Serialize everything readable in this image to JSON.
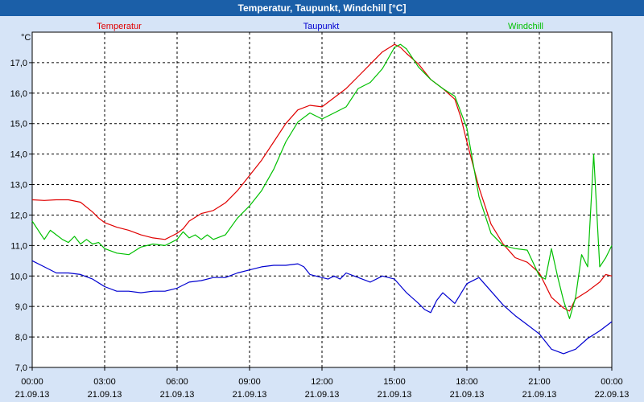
{
  "window": {
    "title": "Temperatur, Taupunkt, Windchill [°C]"
  },
  "colors": {
    "background": "#d6e4f7",
    "plot_background": "#ffffff",
    "title_bar": "#1b5fa8",
    "grid": "#000000"
  },
  "chart_data": {
    "type": "line",
    "title": "Temperatur, Taupunkt, Windchill [°C]",
    "ylabel": "°C",
    "xlabel": "",
    "xlim": [
      0,
      24
    ],
    "ylim": [
      7,
      18
    ],
    "grid": true,
    "yticks": [
      {
        "value": 7,
        "label": "7,0"
      },
      {
        "value": 8,
        "label": "8,0"
      },
      {
        "value": 9,
        "label": "9,0"
      },
      {
        "value": 10,
        "label": "10,0"
      },
      {
        "value": 11,
        "label": "11,0"
      },
      {
        "value": 12,
        "label": "12,0"
      },
      {
        "value": 13,
        "label": "13,0"
      },
      {
        "value": 14,
        "label": "14,0"
      },
      {
        "value": 15,
        "label": "15,0"
      },
      {
        "value": 16,
        "label": "16,0"
      },
      {
        "value": 17,
        "label": "17,0"
      }
    ],
    "xticks": [
      {
        "value": 0,
        "time": "00:00",
        "date": "21.09.13"
      },
      {
        "value": 3,
        "time": "03:00",
        "date": "21.09.13"
      },
      {
        "value": 6,
        "time": "06:00",
        "date": "21.09.13"
      },
      {
        "value": 9,
        "time": "09:00",
        "date": "21.09.13"
      },
      {
        "value": 12,
        "time": "12:00",
        "date": "21.09.13"
      },
      {
        "value": 15,
        "time": "15:00",
        "date": "21.09.13"
      },
      {
        "value": 18,
        "time": "18:00",
        "date": "21.09.13"
      },
      {
        "value": 21,
        "time": "21:00",
        "date": "21.09.13"
      },
      {
        "value": 24,
        "time": "00:00",
        "date": "22.09.13"
      }
    ],
    "series": [
      {
        "name": "Temperatur",
        "color": "#e00000",
        "x": [
          0,
          0.5,
          1,
          1.5,
          2,
          2.5,
          2.75,
          3,
          3.5,
          4,
          4.5,
          5,
          5.5,
          5.75,
          6,
          6.25,
          6.5,
          7,
          7.5,
          8,
          8.5,
          9,
          9.5,
          10,
          10.5,
          11,
          11.5,
          12,
          12.5,
          13,
          13.5,
          14,
          14.5,
          15,
          15.25,
          15.5,
          16,
          16.5,
          17,
          17.5,
          17.75,
          18,
          18.5,
          19,
          19.5,
          20,
          20.5,
          21,
          21.5,
          22,
          22.25,
          22.5,
          23,
          23.5,
          23.75,
          24
        ],
        "values": [
          12.5,
          12.48,
          12.5,
          12.5,
          12.42,
          12.1,
          11.9,
          11.75,
          11.6,
          11.5,
          11.35,
          11.25,
          11.2,
          11.3,
          11.4,
          11.55,
          11.8,
          12.05,
          12.15,
          12.4,
          12.8,
          13.3,
          13.8,
          14.4,
          15.0,
          15.45,
          15.6,
          15.55,
          15.85,
          16.15,
          16.55,
          16.95,
          17.35,
          17.6,
          17.5,
          17.3,
          16.95,
          16.45,
          16.15,
          15.8,
          15.2,
          14.4,
          12.9,
          11.7,
          11.05,
          10.6,
          10.45,
          10.1,
          9.3,
          8.95,
          8.85,
          9.25,
          9.5,
          9.8,
          10.05,
          10.0
        ]
      },
      {
        "name": "Taupunkt",
        "color": "#0000d0",
        "x": [
          0,
          0.5,
          1,
          1.5,
          2,
          2.5,
          3,
          3.5,
          4,
          4.5,
          5,
          5.5,
          6,
          6.5,
          7,
          7.5,
          8,
          8.5,
          9,
          9.5,
          10,
          10.5,
          11,
          11.25,
          11.5,
          12,
          12.25,
          12.5,
          12.75,
          13,
          13.5,
          14,
          14.5,
          15,
          15.5,
          16,
          16.25,
          16.5,
          16.75,
          17,
          17.5,
          18,
          18.5,
          19,
          19.5,
          20,
          20.5,
          21,
          21.5,
          22,
          22.5,
          23,
          23.5,
          24
        ],
        "values": [
          10.5,
          10.3,
          10.1,
          10.1,
          10.05,
          9.9,
          9.65,
          9.5,
          9.5,
          9.45,
          9.5,
          9.5,
          9.6,
          9.8,
          9.85,
          9.95,
          9.95,
          10.1,
          10.2,
          10.3,
          10.35,
          10.35,
          10.4,
          10.3,
          10.05,
          9.95,
          9.9,
          10.0,
          9.9,
          10.1,
          9.95,
          9.8,
          10.0,
          9.9,
          9.45,
          9.1,
          8.9,
          8.8,
          9.2,
          9.45,
          9.1,
          9.75,
          9.95,
          9.5,
          9.05,
          8.7,
          8.4,
          8.1,
          7.6,
          7.45,
          7.6,
          7.95,
          8.2,
          8.5
        ]
      },
      {
        "name": "Windchill",
        "color": "#00c000",
        "x": [
          0,
          0.25,
          0.5,
          0.75,
          1,
          1.25,
          1.5,
          1.75,
          2,
          2.25,
          2.5,
          2.75,
          3,
          3.5,
          4,
          4.5,
          5,
          5.5,
          6,
          6.25,
          6.5,
          6.75,
          7,
          7.25,
          7.5,
          8,
          8.5,
          9,
          9.5,
          10,
          10.5,
          11,
          11.5,
          12,
          12.5,
          13,
          13.5,
          14,
          14.5,
          15,
          15.25,
          15.5,
          16,
          16.5,
          17,
          17.5,
          18,
          18.5,
          19,
          19.5,
          20,
          20.5,
          21,
          21.25,
          21.5,
          21.75,
          22,
          22.25,
          22.5,
          22.75,
          23,
          23.25,
          23.5,
          23.75,
          24
        ],
        "values": [
          11.8,
          11.5,
          11.2,
          11.5,
          11.35,
          11.2,
          11.1,
          11.3,
          11.05,
          11.2,
          11.05,
          11.1,
          10.9,
          10.75,
          10.7,
          10.95,
          11.05,
          11.0,
          11.2,
          11.45,
          11.25,
          11.35,
          11.2,
          11.35,
          11.2,
          11.35,
          11.9,
          12.3,
          12.8,
          13.5,
          14.4,
          15.05,
          15.35,
          15.15,
          15.35,
          15.55,
          16.15,
          16.35,
          16.8,
          17.5,
          17.6,
          17.45,
          16.85,
          16.45,
          16.15,
          15.9,
          14.85,
          12.6,
          11.4,
          11.0,
          10.9,
          10.85,
          10.0,
          9.9,
          10.9,
          10.0,
          9.2,
          8.6,
          9.3,
          10.7,
          10.3,
          14.0,
          10.3,
          10.6,
          11.0
        ]
      }
    ]
  }
}
